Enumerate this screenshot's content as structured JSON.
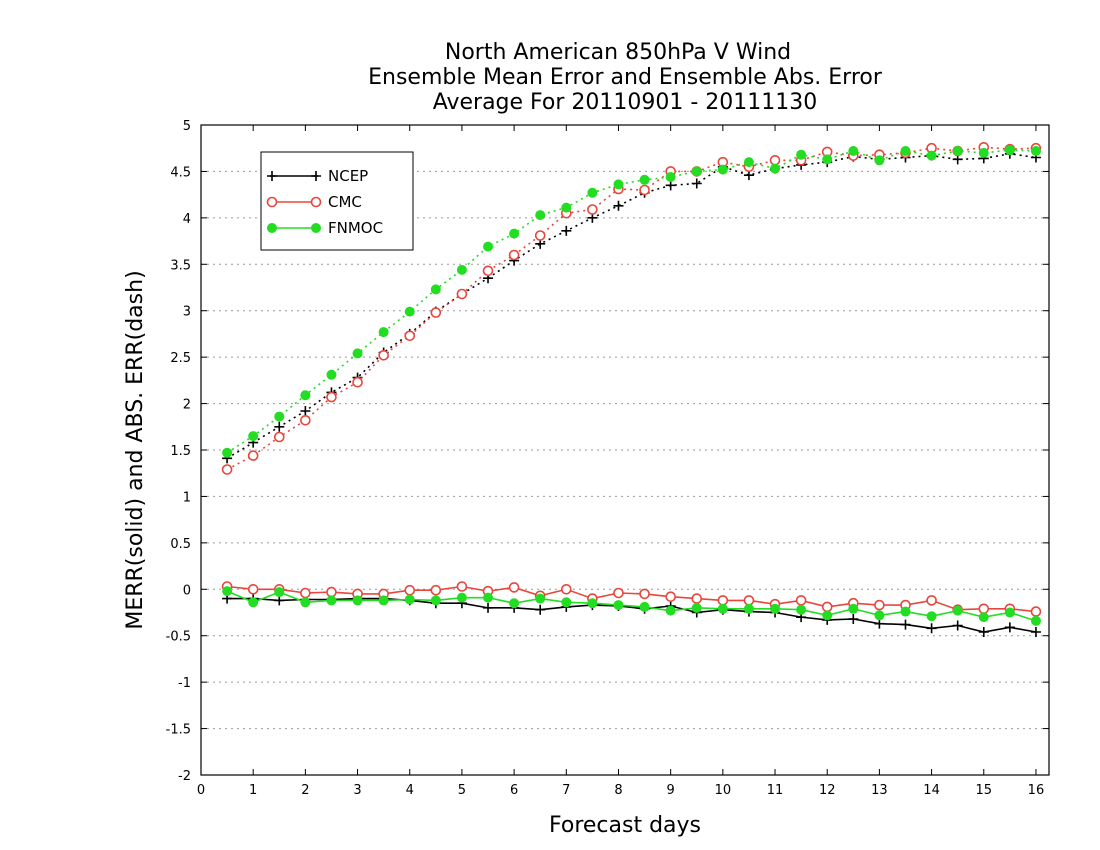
{
  "chart_data": {
    "type": "line",
    "title_lines": [
      "North American 850hPa V Wind",
      "Ensemble Mean Error and Ensemble Abs. Error",
      "Average For 20110901 - 20111130"
    ],
    "xlabel": "Forecast days",
    "ylabel": "MERR(solid) and ABS. ERR(dash)",
    "xlim": [
      0,
      16.25
    ],
    "ylim": [
      -2,
      5
    ],
    "x_ticks": [
      0,
      1,
      2,
      3,
      4,
      5,
      6,
      7,
      8,
      9,
      10,
      11,
      12,
      13,
      14,
      15,
      16
    ],
    "y_ticks": [
      -2,
      -1.5,
      -1,
      -0.5,
      0,
      0.5,
      1,
      1.5,
      2,
      2.5,
      3,
      3.5,
      4,
      4.5,
      5
    ],
    "y_tick_labels": [
      "-2",
      "-1.5",
      "-1",
      "-0.5",
      "0",
      "0.5",
      "1",
      "1.5",
      "2",
      "2.5",
      "3",
      "3.5",
      "4",
      "4.5",
      "5"
    ],
    "grid": true,
    "legend_placement": "top-left",
    "x": [
      0.5,
      1.0,
      1.5,
      2.0,
      2.5,
      3.0,
      3.5,
      4.0,
      4.5,
      5.0,
      5.5,
      6.0,
      6.5,
      7.0,
      7.5,
      8.0,
      8.5,
      9.0,
      9.5,
      10.0,
      10.5,
      11.0,
      11.5,
      12.0,
      12.5,
      13.0,
      13.5,
      14.0,
      14.5,
      15.0,
      15.5,
      16.0
    ],
    "series": [
      {
        "name": "NCEP",
        "color": "#000000",
        "marker": "plus",
        "merr": [
          -0.1,
          -0.1,
          -0.12,
          -0.11,
          -0.11,
          -0.1,
          -0.1,
          -0.12,
          -0.15,
          -0.15,
          -0.2,
          -0.2,
          -0.22,
          -0.19,
          -0.17,
          -0.18,
          -0.21,
          -0.18,
          -0.25,
          -0.22,
          -0.24,
          -0.25,
          -0.3,
          -0.33,
          -0.32,
          -0.37,
          -0.38,
          -0.42,
          -0.39,
          -0.46,
          -0.41,
          -0.46
        ],
        "abs_err": [
          1.41,
          1.58,
          1.75,
          1.92,
          2.12,
          2.28,
          2.55,
          2.75,
          2.99,
          3.18,
          3.35,
          3.54,
          3.72,
          3.86,
          4.0,
          4.13,
          4.27,
          4.35,
          4.37,
          4.55,
          4.46,
          4.53,
          4.57,
          4.6,
          4.66,
          4.63,
          4.65,
          4.67,
          4.63,
          4.64,
          4.69,
          4.65
        ]
      },
      {
        "name": "CMC",
        "color": "#e8463c",
        "marker": "open-circle",
        "merr": [
          0.03,
          0.0,
          0.0,
          -0.04,
          -0.03,
          -0.05,
          -0.05,
          -0.01,
          -0.01,
          0.03,
          -0.02,
          0.02,
          -0.07,
          0.0,
          -0.1,
          -0.04,
          -0.05,
          -0.08,
          -0.1,
          -0.12,
          -0.12,
          -0.16,
          -0.12,
          -0.19,
          -0.15,
          -0.17,
          -0.17,
          -0.12,
          -0.22,
          -0.21,
          -0.21,
          -0.24
        ],
        "abs_err": [
          1.29,
          1.44,
          1.64,
          1.82,
          2.07,
          2.23,
          2.52,
          2.73,
          2.98,
          3.18,
          3.43,
          3.6,
          3.81,
          4.05,
          4.09,
          4.31,
          4.3,
          4.5,
          4.5,
          4.6,
          4.55,
          4.62,
          4.62,
          4.71,
          4.67,
          4.68,
          4.7,
          4.75,
          4.72,
          4.76,
          4.74,
          4.75
        ]
      },
      {
        "name": "FNMOC",
        "color": "#22dd22",
        "marker": "filled-circle",
        "merr": [
          -0.02,
          -0.14,
          -0.03,
          -0.14,
          -0.12,
          -0.12,
          -0.12,
          -0.11,
          -0.12,
          -0.09,
          -0.09,
          -0.15,
          -0.1,
          -0.14,
          -0.15,
          -0.17,
          -0.19,
          -0.23,
          -0.2,
          -0.21,
          -0.21,
          -0.21,
          -0.22,
          -0.28,
          -0.21,
          -0.28,
          -0.24,
          -0.29,
          -0.23,
          -0.3,
          -0.25,
          -0.34
        ],
        "abs_err": [
          1.47,
          1.65,
          1.86,
          2.09,
          2.31,
          2.54,
          2.77,
          2.99,
          3.23,
          3.44,
          3.69,
          3.83,
          4.03,
          4.11,
          4.27,
          4.36,
          4.41,
          4.44,
          4.5,
          4.52,
          4.6,
          4.53,
          4.68,
          4.63,
          4.72,
          4.62,
          4.72,
          4.67,
          4.72,
          4.7,
          4.73,
          4.72
        ]
      }
    ]
  }
}
